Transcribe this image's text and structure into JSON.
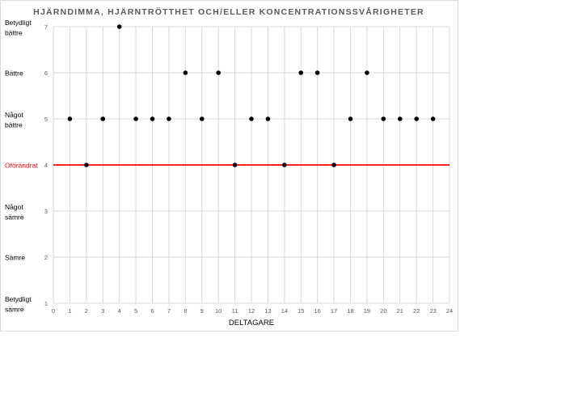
{
  "chart_data": {
    "type": "scatter",
    "title": "HJÄRNDIMMA, HJÄRNTRÖTTHET OCH/ELLER KONCENTRATIONSSVÅRIGHETER",
    "xlabel": "DELTAGARE",
    "ylabel": "",
    "xlim": [
      0,
      24
    ],
    "ylim": [
      1,
      7
    ],
    "xticks": [
      0,
      1,
      2,
      3,
      4,
      5,
      6,
      7,
      8,
      9,
      10,
      11,
      12,
      13,
      14,
      15,
      16,
      17,
      18,
      19,
      20,
      21,
      22,
      23,
      24
    ],
    "yticks": [
      1,
      2,
      3,
      4,
      5,
      6,
      7
    ],
    "ycategory_labels": [
      {
        "value": 7,
        "lines": [
          "Betydligt",
          "bättre"
        ]
      },
      {
        "value": 6,
        "lines": [
          "Bättre"
        ]
      },
      {
        "value": 5,
        "lines": [
          "Något",
          "bättre"
        ]
      },
      {
        "value": 4,
        "lines": [
          "Oförändrat"
        ],
        "color": "#ff0000"
      },
      {
        "value": 3,
        "lines": [
          "Något",
          "sämre"
        ]
      },
      {
        "value": 2,
        "lines": [
          "Sämre"
        ]
      },
      {
        "value": 1,
        "lines": [
          "Betydligt",
          "sämre"
        ]
      }
    ],
    "grid": true,
    "reference_line": {
      "y": 4,
      "color": "#ff0000"
    },
    "marker_color": "#000000",
    "x": [
      1,
      2,
      3,
      4,
      5,
      6,
      7,
      8,
      9,
      10,
      11,
      12,
      13,
      14,
      15,
      16,
      17,
      18,
      19,
      20,
      21,
      22,
      23
    ],
    "y": [
      5,
      4,
      5,
      7,
      5,
      5,
      5,
      6,
      5,
      6,
      4,
      5,
      5,
      4,
      6,
      6,
      4,
      5,
      6,
      5,
      5,
      5,
      5
    ]
  }
}
